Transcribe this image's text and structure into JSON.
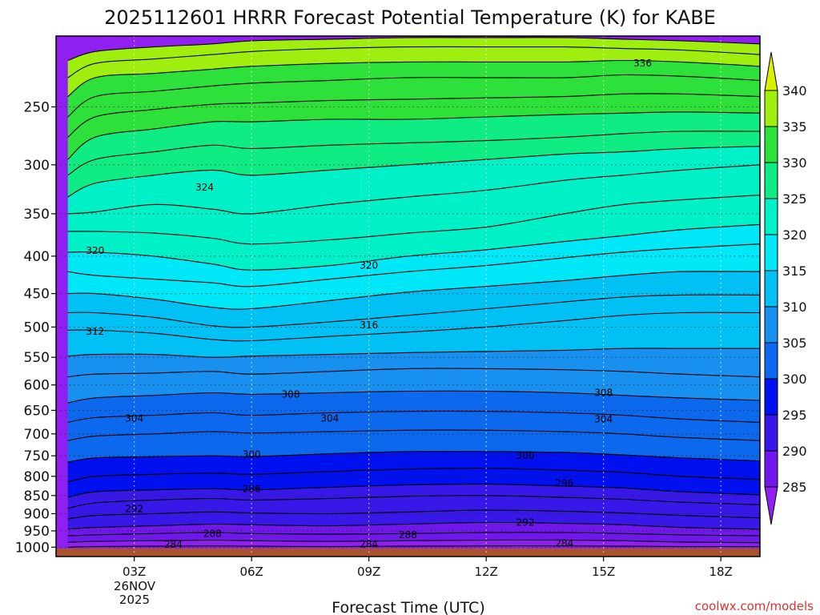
{
  "chart_data": {
    "type": "contour-cross-section",
    "title": "2025112601 HRRR Forecast Potential Temperature (K) for KABE",
    "xlabel": "Forecast Time (UTC)",
    "ylabel": "",
    "credit": "coolwx.com/models",
    "x_ticks": [
      {
        "hour": 3,
        "label": "03Z"
      },
      {
        "hour": 6,
        "label": "06Z"
      },
      {
        "hour": 9,
        "label": "09Z"
      },
      {
        "hour": 12,
        "label": "12Z"
      },
      {
        "hour": 15,
        "label": "15Z"
      },
      {
        "hour": 18,
        "label": "18Z"
      }
    ],
    "date_label": [
      "26NOV",
      "2025"
    ],
    "x_range": [
      1,
      19
    ],
    "y_ticks": [
      250,
      300,
      350,
      400,
      450,
      500,
      550,
      600,
      650,
      700,
      750,
      800,
      850,
      900,
      950,
      1000
    ],
    "y_range": [
      200,
      1030
    ],
    "y_scale": "log-pressure",
    "grid": "dotted",
    "colorbar": {
      "labels": [
        "340",
        "335",
        "330",
        "325",
        "320",
        "315",
        "310",
        "305",
        "300",
        "295",
        "290",
        "285"
      ],
      "bands": [
        {
          "value": 340,
          "color": "#d0f000"
        },
        {
          "value": 335,
          "color": "#a0ee10"
        },
        {
          "value": 330,
          "color": "#2ee03a"
        },
        {
          "value": 325,
          "color": "#10ec84"
        },
        {
          "value": 320,
          "color": "#00f0c8"
        },
        {
          "value": 315,
          "color": "#00e8f8"
        },
        {
          "value": 310,
          "color": "#00c0f4"
        },
        {
          "value": 305,
          "color": "#1890f0"
        },
        {
          "value": 300,
          "color": "#0c68ec"
        },
        {
          "value": 295,
          "color": "#0010ee"
        },
        {
          "value": 290,
          "color": "#3818e8"
        },
        {
          "value": 285,
          "color": "#7018ec"
        }
      ],
      "over_color": "#d8f000",
      "under_color": "#9020f0"
    },
    "ground_color": "#a8522e",
    "contours": [
      {
        "theta": 284,
        "pressure": [
          1000,
          998,
          997,
          996,
          997,
          998,
          997,
          996,
          996,
          997,
          998,
          998
        ]
      },
      {
        "theta": 286,
        "pressure": [
          985,
          982,
          980,
          978,
          980,
          982,
          980,
          978,
          978,
          980,
          984,
          986
        ]
      },
      {
        "theta": 288,
        "pressure": [
          965,
          962,
          958,
          955,
          958,
          960,
          958,
          955,
          955,
          958,
          962,
          965
        ]
      },
      {
        "theta": 290,
        "pressure": [
          945,
          940,
          935,
          930,
          932,
          935,
          930,
          925,
          928,
          932,
          940,
          945
        ]
      },
      {
        "theta": 292,
        "pressure": [
          915,
          905,
          900,
          895,
          898,
          900,
          895,
          890,
          893,
          898,
          905,
          912
        ]
      },
      {
        "theta": 294,
        "pressure": [
          885,
          870,
          862,
          858,
          862,
          858,
          852,
          850,
          855,
          860,
          868,
          875
        ]
      },
      {
        "theta": 296,
        "pressure": [
          855,
          840,
          835,
          832,
          835,
          828,
          822,
          820,
          825,
          830,
          840,
          848
        ]
      },
      {
        "theta": 298,
        "pressure": [
          815,
          800,
          795,
          792,
          795,
          788,
          782,
          780,
          785,
          790,
          800,
          808
        ]
      },
      {
        "theta": 300,
        "pressure": [
          765,
          755,
          752,
          750,
          752,
          745,
          740,
          740,
          742,
          748,
          755,
          762
        ]
      },
      {
        "theta": 302,
        "pressure": [
          715,
          705,
          700,
          695,
          698,
          695,
          692,
          692,
          695,
          700,
          708,
          715
        ]
      },
      {
        "theta": 304,
        "pressure": [
          675,
          665,
          660,
          655,
          660,
          655,
          652,
          652,
          655,
          660,
          668,
          675
        ]
      },
      {
        "theta": 306,
        "pressure": [
          635,
          625,
          620,
          615,
          618,
          615,
          612,
          612,
          615,
          620,
          625,
          630
        ]
      },
      {
        "theta": 308,
        "pressure": [
          585,
          580,
          578,
          575,
          580,
          575,
          570,
          570,
          572,
          575,
          580,
          585
        ]
      },
      {
        "theta": 310,
        "pressure": [
          548,
          545,
          545,
          550,
          548,
          545,
          542,
          540,
          538,
          535,
          535,
          535
        ]
      },
      {
        "theta": 312,
        "pressure": [
          505,
          505,
          510,
          520,
          522,
          515,
          508,
          500,
          490,
          482,
          478,
          478
        ]
      },
      {
        "theta": 314,
        "pressure": [
          478,
          478,
          485,
          498,
          500,
          492,
          482,
          472,
          462,
          455,
          452,
          452
        ]
      },
      {
        "theta": 316,
        "pressure": [
          450,
          450,
          458,
          470,
          472,
          460,
          448,
          440,
          432,
          425,
          420,
          420
        ]
      },
      {
        "theta": 318,
        "pressure": [
          420,
          425,
          430,
          435,
          440,
          430,
          420,
          412,
          402,
          395,
          390,
          385
        ]
      },
      {
        "theta": 320,
        "pressure": [
          395,
          395,
          400,
          410,
          418,
          412,
          400,
          392,
          382,
          375,
          368,
          362
        ]
      },
      {
        "theta": 322,
        "pressure": [
          370,
          370,
          372,
          378,
          385,
          380,
          372,
          365,
          350,
          340,
          335,
          330
        ]
      },
      {
        "theta": 324,
        "pressure": [
          350,
          348,
          340,
          345,
          350,
          340,
          332,
          325,
          315,
          310,
          305,
          300
        ]
      },
      {
        "theta": 326,
        "pressure": [
          332,
          318,
          310,
          305,
          310,
          305,
          300,
          295,
          290,
          288,
          285,
          283
        ]
      },
      {
        "theta": 328,
        "pressure": [
          310,
          295,
          288,
          282,
          285,
          282,
          280,
          278,
          275,
          272,
          270,
          270
        ]
      },
      {
        "theta": 330,
        "pressure": [
          295,
          275,
          268,
          262,
          262,
          260,
          260,
          258,
          256,
          255,
          254,
          255
        ]
      },
      {
        "theta": 332,
        "pressure": [
          275,
          258,
          252,
          248,
          247,
          245,
          244,
          243,
          242,
          240,
          240,
          242
        ]
      },
      {
        "theta": 334,
        "pressure": [
          258,
          242,
          238,
          234,
          232,
          230,
          228,
          228,
          228,
          226,
          227,
          230
        ]
      },
      {
        "theta": 336,
        "pressure": [
          242,
          228,
          225,
          222,
          220,
          218,
          217,
          217,
          217,
          216,
          217,
          220
        ]
      },
      {
        "theta": 338,
        "pressure": [
          228,
          218,
          215,
          212,
          210,
          208,
          207,
          207,
          207,
          208,
          209,
          212
        ]
      },
      {
        "theta": 340,
        "pressure": [
          216,
          210,
          207,
          205,
          203,
          202,
          201,
          201,
          201,
          202,
          203,
          205
        ]
      }
    ],
    "contour_hours": [
      1.3,
      2,
      3.5,
      5,
      6,
      8,
      10,
      12,
      14,
      15.5,
      17,
      19
    ],
    "contour_labels": [
      {
        "text": "336",
        "hour": 16.0,
        "pressure": 218
      },
      {
        "text": "324",
        "hour": 4.8,
        "pressure": 322
      },
      {
        "text": "320",
        "hour": 2.0,
        "pressure": 393
      },
      {
        "text": "320",
        "hour": 9.0,
        "pressure": 412
      },
      {
        "text": "316",
        "hour": 9.0,
        "pressure": 497
      },
      {
        "text": "312",
        "hour": 2.0,
        "pressure": 507
      },
      {
        "text": "308",
        "hour": 7.0,
        "pressure": 618
      },
      {
        "text": "308",
        "hour": 15.0,
        "pressure": 615
      },
      {
        "text": "304",
        "hour": 3.0,
        "pressure": 667
      },
      {
        "text": "304",
        "hour": 8.0,
        "pressure": 667
      },
      {
        "text": "304",
        "hour": 15.0,
        "pressure": 668
      },
      {
        "text": "300",
        "hour": 6.0,
        "pressure": 747
      },
      {
        "text": "300",
        "hour": 13.0,
        "pressure": 750
      },
      {
        "text": "296",
        "hour": 6.0,
        "pressure": 832
      },
      {
        "text": "296",
        "hour": 14.0,
        "pressure": 818
      },
      {
        "text": "292",
        "hour": 3.0,
        "pressure": 887
      },
      {
        "text": "292",
        "hour": 13.0,
        "pressure": 925
      },
      {
        "text": "288",
        "hour": 5.0,
        "pressure": 958
      },
      {
        "text": "288",
        "hour": 10.0,
        "pressure": 962
      },
      {
        "text": "284",
        "hour": 4.0,
        "pressure": 992
      },
      {
        "text": "284",
        "hour": 9.0,
        "pressure": 990
      },
      {
        "text": "284",
        "hour": 14.0,
        "pressure": 988
      }
    ]
  }
}
